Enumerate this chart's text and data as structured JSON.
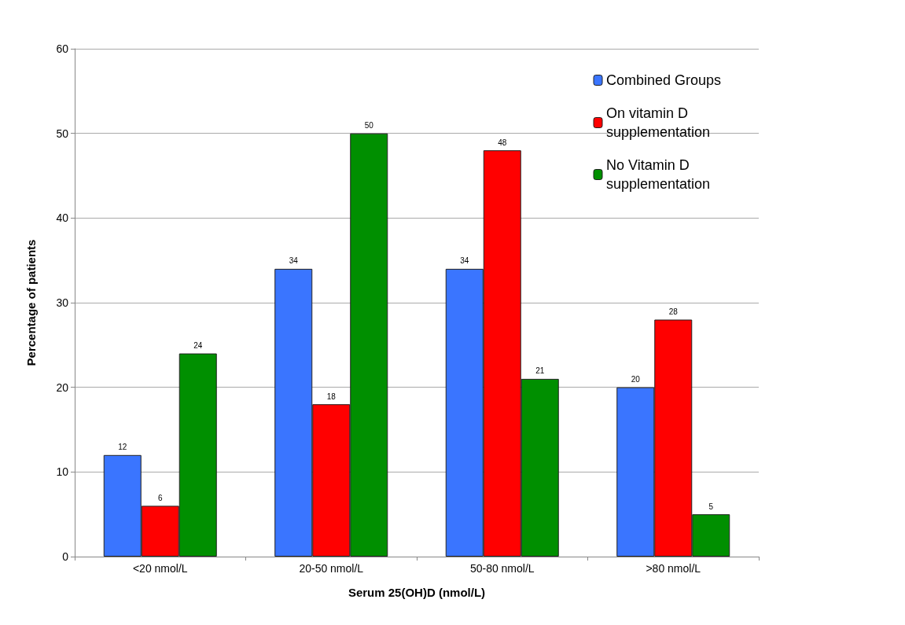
{
  "chart_data": {
    "type": "bar",
    "xlabel": "Serum 25(OH)D (nmol/L)",
    "ylabel": "Percentage of patients",
    "categories": [
      "<20 nmol/L",
      "20-50 nmol/L",
      "50-80 nmol/L",
      ">80 nmol/L"
    ],
    "series": [
      {
        "name": "Combined Groups",
        "color": "#3a75ff",
        "values": [
          12,
          34,
          34,
          20
        ]
      },
      {
        "name": "On vitamin D supplementation",
        "color": "#ff0000",
        "values": [
          6,
          18,
          48,
          28
        ]
      },
      {
        "name": "No Vitamin D supplementation",
        "color": "#008f00",
        "values": [
          24,
          50,
          21,
          5
        ]
      }
    ],
    "ylim": [
      0,
      60
    ],
    "yticks": [
      0,
      10,
      20,
      30,
      40,
      50,
      60
    ],
    "grid": "y",
    "legend": "top right",
    "data_labels": true
  }
}
